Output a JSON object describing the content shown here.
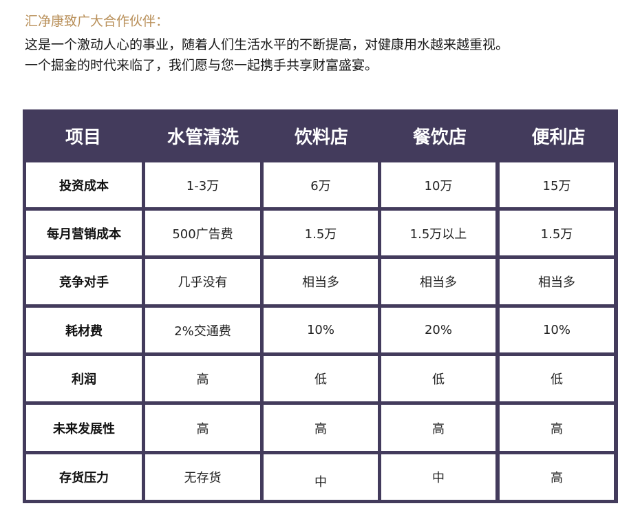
{
  "intro": {
    "title": "汇净康致广大合作伙伴：",
    "line1": "这是一个激动人心的事业，随着人们生活水平的不断提高，对健康用水越来越重视。",
    "line2": "一个掘金的时代来临了，我们愿与您一起携手共享财富盛宴。"
  },
  "table": {
    "headers": [
      "项目",
      "水管清洗",
      "饮料店",
      "餐饮店",
      "便利店"
    ],
    "rows": [
      {
        "label": "投资成本",
        "values": [
          "1-3万",
          "6万",
          "10万",
          "15万"
        ]
      },
      {
        "label": "每月营销成本",
        "values": [
          "500广告费",
          "1.5万",
          "1.5万以上",
          "1.5万"
        ]
      },
      {
        "label": "竞争对手",
        "values": [
          "几乎没有",
          "相当多",
          "相当多",
          "相当多"
        ]
      },
      {
        "label": "耗材费",
        "values": [
          "2%交通费",
          "10%",
          "20%",
          "10%"
        ]
      },
      {
        "label": "利润",
        "values": [
          "高",
          "低",
          "低",
          "低"
        ]
      },
      {
        "label": "未来发展性",
        "values": [
          "高",
          "高",
          "高",
          "高"
        ]
      },
      {
        "label": "存货压力",
        "values": [
          "无存货",
          "中",
          "中",
          "高"
        ]
      }
    ]
  },
  "colors": {
    "header_bg": "#433b5c",
    "title_accent": "#b9905a"
  }
}
